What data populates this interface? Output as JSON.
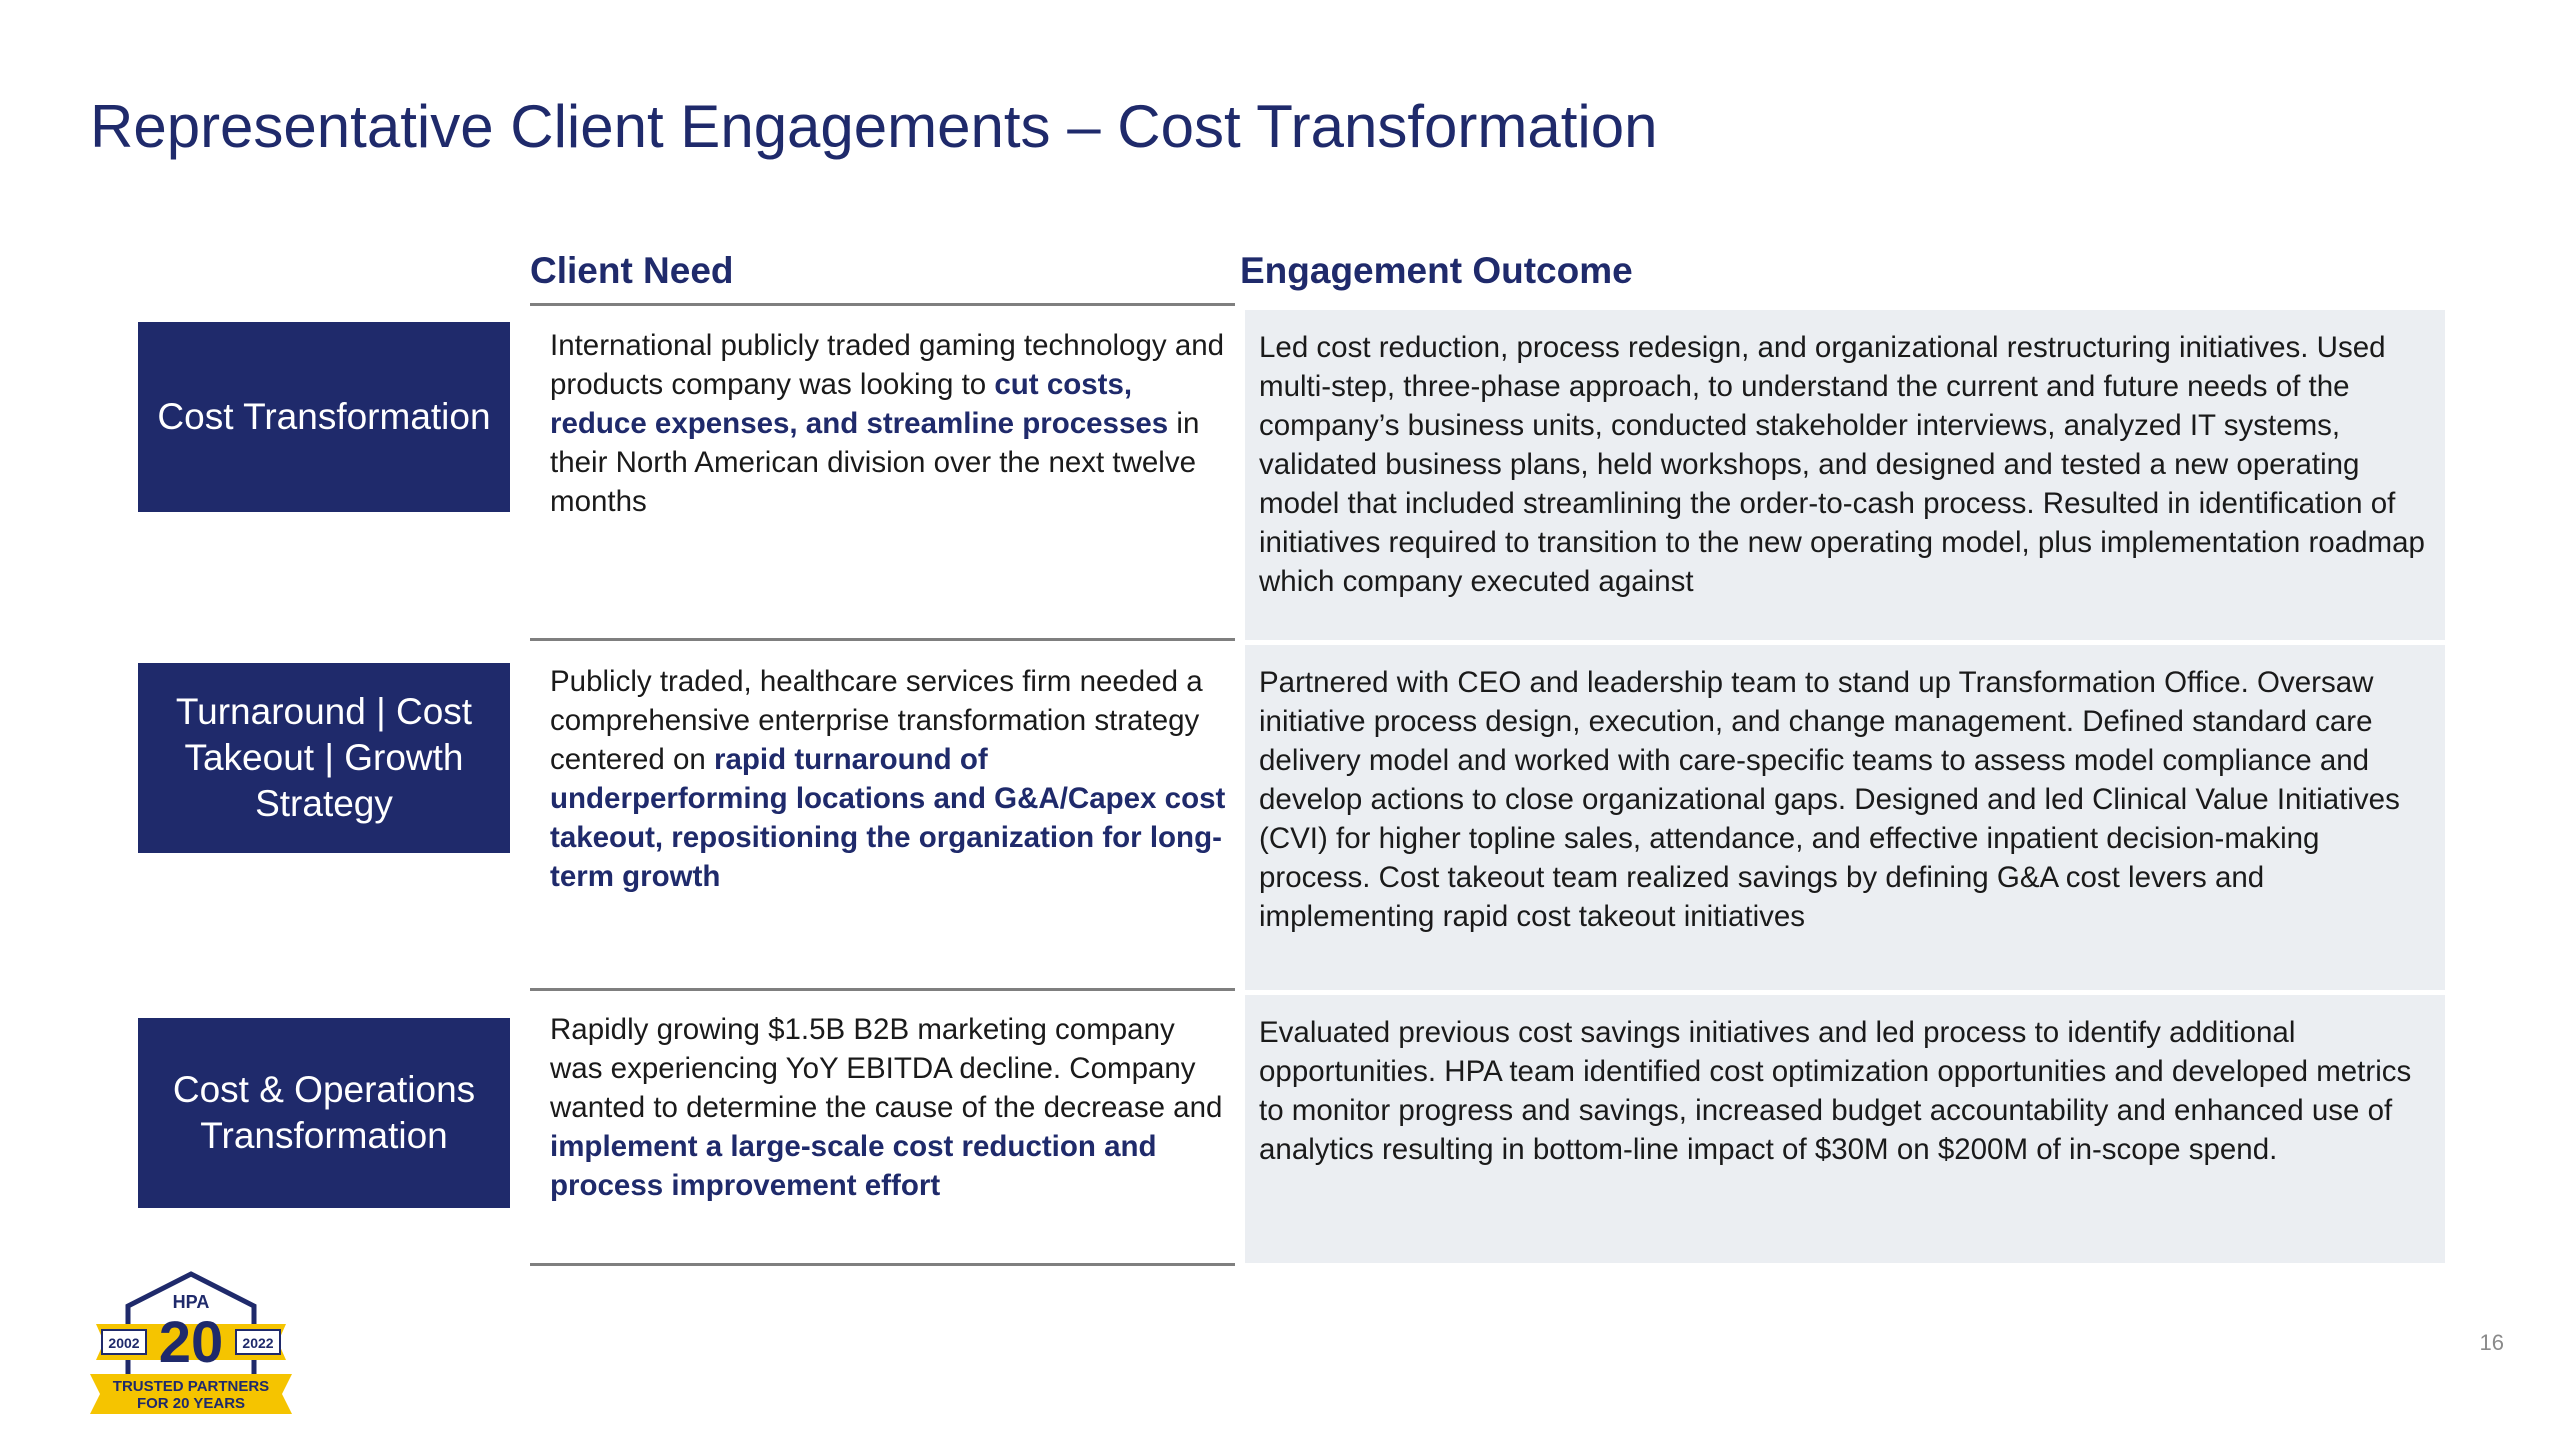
{
  "title": "Representative Client Engagements – Cost Transformation",
  "columns": {
    "need": "Client Need",
    "outcome": "Engagement Outcome"
  },
  "rows": [
    {
      "label": "Cost Transformation",
      "need_parts": [
        {
          "text": "International publicly traded gaming technology and products company was looking to ",
          "bold": false
        },
        {
          "text": "cut costs, reduce expenses, and streamline processes",
          "bold": true
        },
        {
          "text": " in their North American division over the next twelve months",
          "bold": false
        }
      ],
      "outcome": "Led cost reduction, process redesign, and organizational restructuring initiatives. Used multi-step, three-phase approach, to understand the current and future needs of the company’s business units, conducted stakeholder interviews, analyzed IT systems, validated business plans, held workshops, and designed and tested a new operating model that included streamlining the order-to-cash process. Resulted in identification of initiatives required to transition to the new operating model, plus implementation roadmap which company executed against"
    },
    {
      "label": "Turnaround | Cost Takeout | Growth Strategy",
      "need_parts": [
        {
          "text": "Publicly traded, healthcare services firm needed a comprehensive enterprise transformation strategy centered on ",
          "bold": false
        },
        {
          "text": "rapid turnaround of underperforming locations and G&A/Capex cost takeout, repositioning the organization for long-term growth",
          "bold": true
        }
      ],
      "outcome": "Partnered with CEO and leadership team to stand up Transformation Office. Oversaw initiative process design, execution, and change management. Defined standard care delivery model and worked with care-specific teams to assess model compliance and develop actions to close organizational gaps. Designed and led Clinical Value Initiatives (CVI) for higher topline sales, attendance, and effective inpatient decision-making process. Cost takeout team realized savings by defining G&A cost levers and implementing rapid cost takeout initiatives"
    },
    {
      "label": "Cost & Operations Transformation",
      "need_parts": [
        {
          "text": "Rapidly growing $1.5B B2B marketing company was experiencing YoY EBITDA decline. Company wanted to determine the cause of the decrease and ",
          "bold": false
        },
        {
          "text": "implement a large-scale cost reduction and process improvement effort",
          "bold": true
        }
      ],
      "outcome": "Evaluated previous cost savings initiatives and led process to identify additional opportunities. HPA team identified cost optimization opportunities and developed metrics to monitor progress and savings, increased budget accountability and enhanced use of analytics resulting in bottom-line impact of $30M on $200M of in-scope spend."
    }
  ],
  "page_number": "16",
  "badge": {
    "brand": "HPA",
    "number": "20",
    "year_start": "2002",
    "year_end": "2022",
    "line1": "TRUSTED PARTNERS",
    "line2": "FOR 20 YEARS",
    "colors": {
      "navy": "#1f2a6b",
      "gold": "#f5c400"
    }
  },
  "colors": {
    "navy": "#1f2a6b",
    "panel": "#ebeef2",
    "rule": "#7f7f7f"
  }
}
